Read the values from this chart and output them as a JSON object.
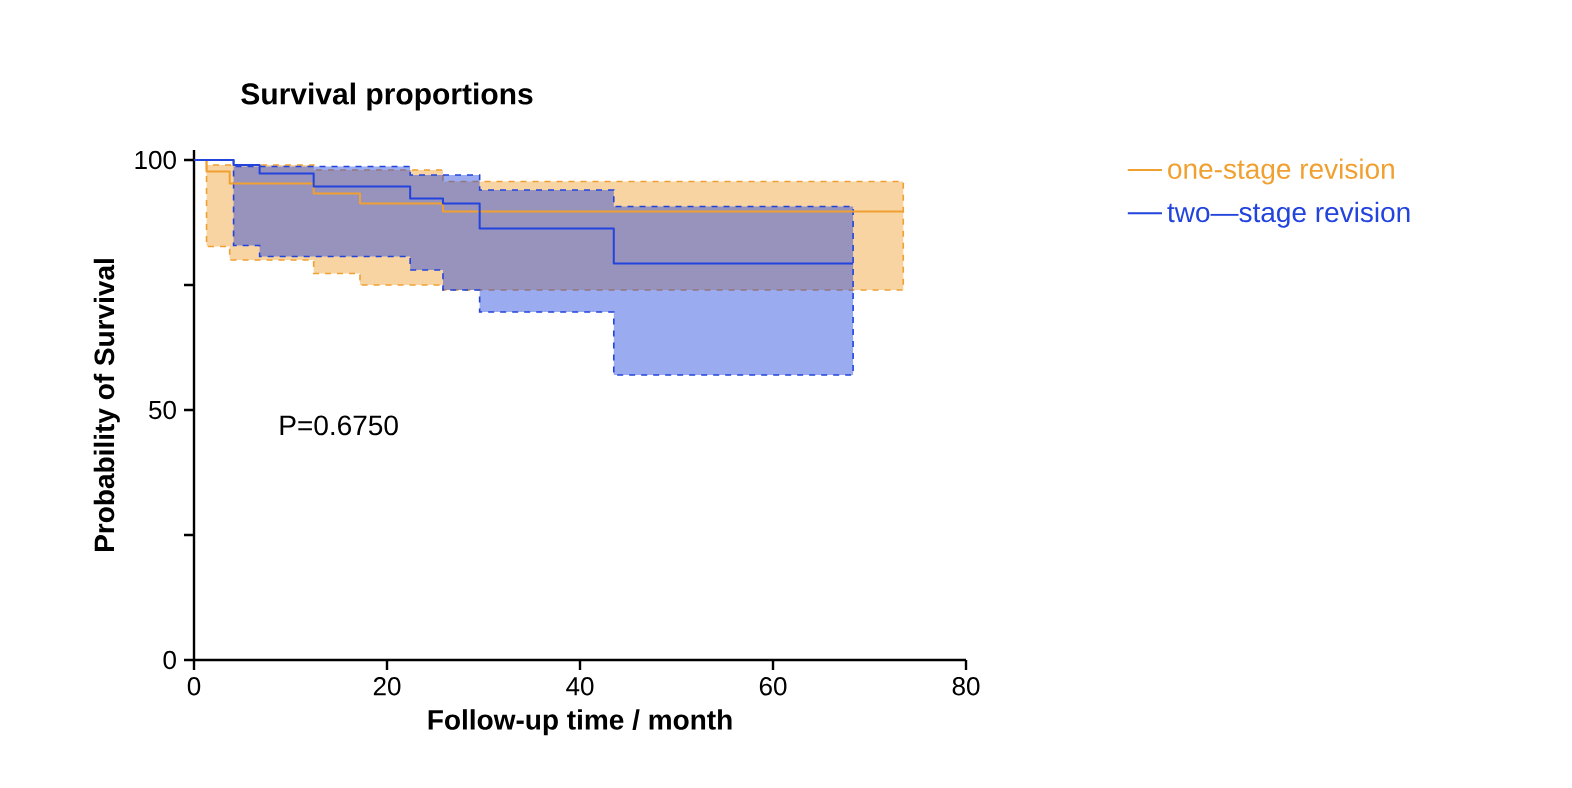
{
  "chart_data": {
    "type": "step",
    "title": "Survival proportions",
    "xlabel": "Follow-up time / month",
    "ylabel": "Probability of Survival",
    "annotations": [
      "P=0.6750"
    ],
    "xlim": [
      0,
      80
    ],
    "ylim": [
      0,
      102
    ],
    "xticks": [
      0,
      20,
      40,
      60,
      80
    ],
    "yticks": [
      0,
      {
        "value": 25,
        "label": null
      },
      50,
      {
        "value": 75,
        "label": null
      },
      100
    ],
    "legend": "right",
    "grid": false,
    "marker": "none",
    "line_style": "solid",
    "series": [
      {
        "name": "one-stage revision",
        "color": "#f0a030",
        "x": [
          0,
          1.3,
          3.7,
          12.4,
          17.2,
          25.8,
          73.5
        ],
        "values": [
          100,
          97.7,
          95.3,
          93.3,
          91.3,
          89.7,
          89.7
        ],
        "upper": [
          100,
          99,
          99,
          98,
          98,
          95.7,
          95.7
        ],
        "lower": [
          100,
          82.7,
          80,
          77.3,
          75,
          74,
          74
        ]
      },
      {
        "name": "two—stage revision",
        "color": "#2244dd",
        "x": [
          0,
          4.1,
          6.8,
          12.4,
          22.4,
          25.8,
          29.6,
          43.5,
          68.3
        ],
        "values": [
          100,
          99,
          97.3,
          94.7,
          92.3,
          91.3,
          86.3,
          79.3,
          79.3
        ],
        "upper": [
          100,
          98.7,
          98.7,
          98.7,
          97,
          97,
          94,
          90.7,
          90.7
        ],
        "lower": [
          100,
          82.9,
          80.7,
          80.7,
          78,
          74,
          69.6,
          57,
          57
        ]
      }
    ]
  }
}
